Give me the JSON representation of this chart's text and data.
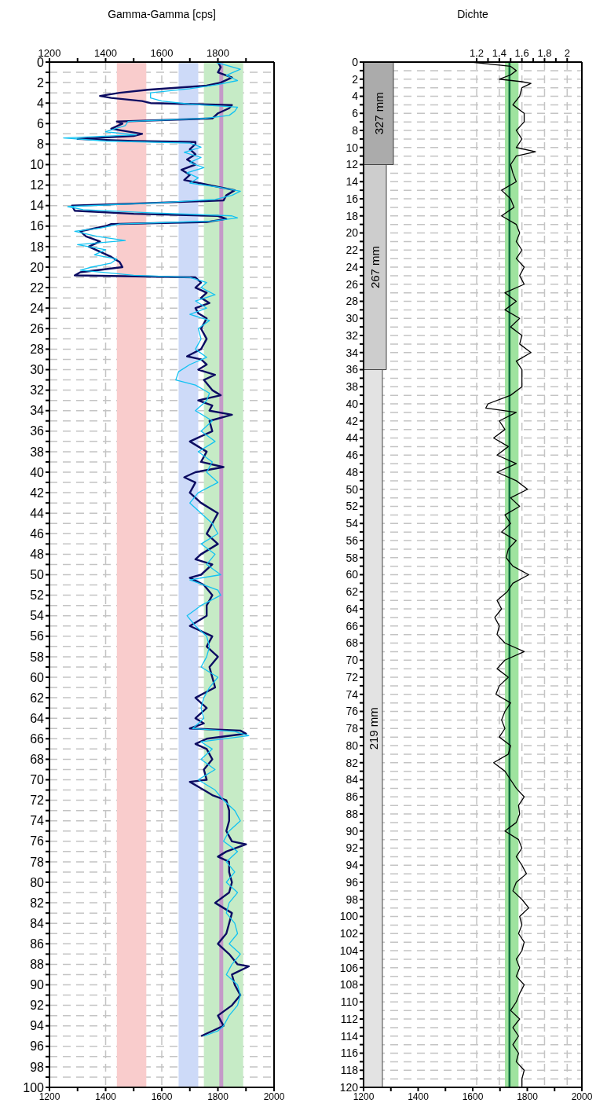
{
  "chart_data": [
    {
      "type": "line",
      "orientation": "horizontal",
      "title": "Gamma-Gamma [cps]",
      "grid": true,
      "xlim": [
        1200,
        2000
      ],
      "xticks": [
        1200,
        {
          "value": 1300,
          "label": null
        },
        1400,
        {
          "value": 1500,
          "label": null
        },
        1600,
        {
          "value": 1700,
          "label": null
        },
        1800,
        {
          "value": 1900,
          "label": null
        },
        2000
      ],
      "x2lim": [
        1200,
        2000
      ],
      "x2ticks": [
        1200,
        {
          "value": 1300,
          "label": null
        },
        1400,
        {
          "value": 1500,
          "label": null
        },
        1600,
        {
          "value": 1700,
          "label": null
        },
        1800,
        {
          "value": 1900,
          "label": null
        }
      ],
      "ylim": [
        100,
        0
      ],
      "yticks": [
        0,
        {
          "value": 1,
          "label": null
        },
        2,
        {
          "value": 3,
          "label": null
        },
        4,
        {
          "value": 5,
          "label": null
        },
        6,
        {
          "value": 7,
          "label": null
        },
        8,
        {
          "value": 9,
          "label": null
        },
        10,
        {
          "value": 11,
          "label": null
        },
        12,
        {
          "value": 13,
          "label": null
        },
        14,
        {
          "value": 15,
          "label": null
        },
        16,
        {
          "value": 17,
          "label": null
        },
        18,
        {
          "value": 19,
          "label": null
        },
        20,
        {
          "value": 21,
          "label": null
        },
        22,
        {
          "value": 23,
          "label": null
        },
        24,
        {
          "value": 25,
          "label": null
        },
        26,
        {
          "value": 27,
          "label": null
        },
        28,
        {
          "value": 29,
          "label": null
        },
        30,
        {
          "value": 31,
          "label": null
        },
        32,
        {
          "value": 33,
          "label": null
        },
        34,
        {
          "value": 35,
          "label": null
        },
        36,
        {
          "value": 37,
          "label": null
        },
        38,
        {
          "value": 39,
          "label": null
        },
        40,
        {
          "value": 41,
          "label": null
        },
        42,
        {
          "value": 43,
          "label": null
        },
        44,
        {
          "value": 45,
          "label": null
        },
        46,
        {
          "value": 47,
          "label": null
        },
        48,
        {
          "value": 49,
          "label": null
        },
        50,
        {
          "value": 51,
          "label": null
        },
        52,
        {
          "value": 53,
          "label": null
        },
        54,
        {
          "value": 55,
          "label": null
        },
        56,
        {
          "value": 57,
          "label": null
        },
        58,
        {
          "value": 59,
          "label": null
        },
        60,
        {
          "value": 61,
          "label": null
        },
        62,
        {
          "value": 63,
          "label": null
        },
        64,
        {
          "value": 65,
          "label": null
        },
        66,
        {
          "value": 67,
          "label": null
        },
        68,
        {
          "value": 69,
          "label": null
        },
        70,
        {
          "value": 71,
          "label": null
        },
        72,
        {
          "value": 73,
          "label": null
        },
        74,
        {
          "value": 75,
          "label": null
        },
        76,
        {
          "value": 77,
          "label": null
        },
        78,
        {
          "value": 79,
          "label": null
        },
        80,
        {
          "value": 81,
          "label": null
        },
        82,
        {
          "value": 83,
          "label": null
        },
        84,
        {
          "value": 85,
          "label": null
        },
        86,
        {
          "value": 87,
          "label": null
        },
        88,
        {
          "value": 89,
          "label": null
        },
        90,
        {
          "value": 91,
          "label": null
        },
        92,
        {
          "value": 93,
          "label": null
        },
        94,
        {
          "value": 95,
          "label": null
        },
        96,
        {
          "value": 97,
          "label": null
        },
        98,
        {
          "value": 99,
          "label": null
        },
        100
      ],
      "bands": [
        {
          "axis": "x",
          "from": 1440,
          "to": 1545,
          "color": "#f9cccc"
        },
        {
          "axis": "x",
          "from": 1660,
          "to": 1730,
          "color": "#cddaf8"
        },
        {
          "axis": "x",
          "from": 1750,
          "to": 1890,
          "color": "#c6ebc6"
        }
      ],
      "ref_lines": [
        {
          "axis": "x",
          "value": 1812,
          "color": "#c49ac8"
        }
      ],
      "series": [
        {
          "color": "#0c0c62",
          "x": [
            0,
            0.5,
            1,
            1.5,
            2,
            2.3,
            2.7,
            3,
            3.3,
            3.5,
            3.8,
            4,
            4.2,
            4.5,
            5,
            5.5,
            5.8,
            6,
            6.5,
            7,
            7.2,
            7.5,
            7.7,
            7.8,
            8,
            8.5,
            9,
            9.5,
            10,
            10.5,
            11,
            11.5,
            12,
            12.5,
            13,
            13.5,
            13.8,
            14,
            14.5,
            14.8,
            15,
            15.3,
            15.6,
            15.8,
            16,
            16.5,
            17,
            17.5,
            18,
            18.5,
            19,
            19.5,
            20,
            20.5,
            20.8,
            21,
            21.5,
            22,
            22.5,
            23,
            23.5,
            24,
            24.5,
            25,
            25.5,
            26,
            27,
            28,
            28.7,
            29,
            29.5,
            30,
            30.5,
            31,
            32,
            32.5,
            33,
            33.5,
            34,
            34.4,
            35,
            36,
            37,
            38,
            39,
            39.5,
            40,
            40.5,
            41,
            42,
            43,
            44,
            44.5,
            45,
            46,
            47,
            48,
            48.5,
            49,
            50,
            50.3,
            51,
            52,
            53,
            54,
            55,
            56,
            57,
            58,
            59,
            60,
            61,
            62,
            63,
            64,
            64.5,
            65,
            65.2,
            65.5,
            66,
            66.5,
            67,
            68,
            69,
            70,
            70.2,
            71,
            71.5,
            72,
            73,
            74,
            75,
            76,
            76.3,
            77,
            77.5,
            78,
            79,
            80,
            81,
            82,
            83,
            84,
            85,
            86,
            87,
            88,
            88.2,
            89,
            90,
            91,
            92,
            93,
            94,
            94.5,
            95
          ],
          "values": [
            1800,
            1810,
            1800,
            1850,
            1810,
            1760,
            1550,
            1450,
            1380,
            1420,
            1530,
            1560,
            1850,
            1840,
            1800,
            1780,
            1440,
            1460,
            1420,
            1530,
            1500,
            1300,
            1500,
            1720,
            1720,
            1700,
            1720,
            1690,
            1720,
            1670,
            1700,
            1680,
            1770,
            1860,
            1830,
            1820,
            1500,
            1280,
            1290,
            1500,
            1800,
            1830,
            1760,
            1420,
            1400,
            1310,
            1330,
            1380,
            1340,
            1380,
            1420,
            1450,
            1460,
            1310,
            1290,
            1720,
            1740,
            1720,
            1760,
            1740,
            1770,
            1720,
            1730,
            1760,
            1750,
            1740,
            1760,
            1740,
            1690,
            1740,
            1760,
            1730,
            1790,
            1750,
            1780,
            1810,
            1730,
            1780,
            1770,
            1850,
            1770,
            1780,
            1700,
            1760,
            1740,
            1820,
            1720,
            1680,
            1720,
            1700,
            1740,
            1800,
            1790,
            1780,
            1760,
            1800,
            1740,
            1720,
            1780,
            1740,
            1700,
            1750,
            1780,
            1760,
            1760,
            1700,
            1780,
            1760,
            1800,
            1770,
            1780,
            1790,
            1720,
            1760,
            1720,
            1750,
            1700,
            1880,
            1900,
            1760,
            1720,
            1760,
            1780,
            1750,
            1760,
            1700,
            1750,
            1780,
            1830,
            1840,
            1840,
            1830,
            1850,
            1900,
            1830,
            1800,
            1840,
            1840,
            1850,
            1840,
            1790,
            1850,
            1840,
            1830,
            1800,
            1840,
            1870,
            1910,
            1850,
            1860,
            1880,
            1850,
            1800,
            1820,
            1780,
            1740
          ]
        },
        {
          "color": "#12c2f2",
          "x": [
            0,
            0.7,
            1.3,
            1.8,
            2.2,
            2.6,
            3,
            3.5,
            3.8,
            4.1,
            4.4,
            4.8,
            5.2,
            5.5,
            5.8,
            6.2,
            6.8,
            7.1,
            7.4,
            7.7,
            7.9,
            8.3,
            8.8,
            9.3,
            9.8,
            10.3,
            10.8,
            11.3,
            11.8,
            12.2,
            12.6,
            13,
            13.4,
            13.7,
            14.1,
            14.4,
            14.7,
            15,
            15.2,
            15.5,
            15.8,
            16.2,
            16.5,
            17,
            17.4,
            17.8,
            18.3,
            18.8,
            19.2,
            19.6,
            20,
            20.3,
            20.8,
            21,
            21.5,
            22,
            22.7,
            23.3,
            24,
            24.6,
            25.2,
            26,
            27,
            28,
            28.8,
            29.5,
            30.2,
            31,
            31.5,
            32.3,
            33,
            34,
            35,
            36,
            37,
            38,
            39,
            40,
            41,
            42,
            43,
            44,
            45,
            46,
            47,
            48,
            49,
            50,
            50.5,
            51.5,
            52,
            53,
            54,
            55,
            56,
            57,
            58,
            59,
            60,
            61,
            62,
            63,
            64,
            65,
            65.3,
            65.7,
            66.3,
            67,
            68,
            69,
            70,
            71,
            72,
            73,
            74,
            75,
            76,
            77,
            78,
            79,
            80,
            81,
            82,
            83,
            84,
            85,
            86,
            87,
            88,
            89,
            90,
            91,
            92,
            93,
            94,
            94.5,
            95
          ],
          "values": [
            1790,
            1880,
            1830,
            1870,
            1800,
            1700,
            1560,
            1560,
            1600,
            1700,
            1870,
            1860,
            1840,
            1750,
            1480,
            1470,
            1400,
            1510,
            1250,
            1400,
            1700,
            1740,
            1680,
            1740,
            1700,
            1750,
            1690,
            1730,
            1700,
            1800,
            1880,
            1850,
            1790,
            1600,
            1265,
            1320,
            1560,
            1850,
            1870,
            1780,
            1450,
            1380,
            1290,
            1370,
            1470,
            1300,
            1400,
            1360,
            1440,
            1420,
            1350,
            1310,
            1500,
            1700,
            1760,
            1740,
            1790,
            1720,
            1760,
            1700,
            1770,
            1730,
            1740,
            1720,
            1760,
            1700,
            1660,
            1650,
            1720,
            1770,
            1760,
            1720,
            1780,
            1740,
            1790,
            1730,
            1780,
            1760,
            1800,
            1730,
            1700,
            1740,
            1780,
            1800,
            1740,
            1790,
            1760,
            1810,
            1700,
            1800,
            1810,
            1740,
            1690,
            1720,
            1760,
            1770,
            1760,
            1740,
            1800,
            1770,
            1750,
            1740,
            1750,
            1710,
            1860,
            1910,
            1740,
            1780,
            1740,
            1790,
            1730,
            1790,
            1820,
            1860,
            1880,
            1840,
            1820,
            1870,
            1830,
            1860,
            1830,
            1870,
            1840,
            1830,
            1860,
            1870,
            1840,
            1880,
            1850,
            1830,
            1870,
            1880,
            1870,
            1840,
            1820,
            1800,
            1750
          ]
        }
      ]
    },
    {
      "type": "line",
      "orientation": "horizontal",
      "title": "Dichte",
      "grid": true,
      "xlim": [
        1200,
        2000
      ],
      "xticks": [
        1200,
        {
          "value": 1300,
          "label": null
        },
        1400,
        {
          "value": 1500,
          "label": null
        },
        1600,
        {
          "value": 1700,
          "label": null
        },
        1800,
        {
          "value": 1900,
          "label": null
        },
        2000
      ],
      "x2lim": [
        0.2,
        2.13
      ],
      "x2ticks": [
        1.2,
        {
          "value": 1.3,
          "label": null
        },
        1.4,
        {
          "value": 1.5,
          "label": null
        },
        1.6,
        {
          "value": 1.7,
          "label": null
        },
        1.8,
        {
          "value": 1.9,
          "label": null
        },
        2
      ],
      "ylim": [
        120,
        0
      ],
      "yticks": [
        0,
        {
          "value": 1,
          "label": null
        },
        2,
        {
          "value": 3,
          "label": null
        },
        4,
        {
          "value": 5,
          "label": null
        },
        6,
        {
          "value": 7,
          "label": null
        },
        8,
        {
          "value": 9,
          "label": null
        },
        10,
        {
          "value": 11,
          "label": null
        },
        12,
        {
          "value": 13,
          "label": null
        },
        14,
        {
          "value": 15,
          "label": null
        },
        16,
        {
          "value": 17,
          "label": null
        },
        18,
        {
          "value": 19,
          "label": null
        },
        20,
        {
          "value": 21,
          "label": null
        },
        22,
        {
          "value": 23,
          "label": null
        },
        24,
        {
          "value": 25,
          "label": null
        },
        26,
        {
          "value": 27,
          "label": null
        },
        28,
        {
          "value": 29,
          "label": null
        },
        30,
        {
          "value": 31,
          "label": null
        },
        32,
        {
          "value": 33,
          "label": null
        },
        34,
        {
          "value": 35,
          "label": null
        },
        36,
        {
          "value": 37,
          "label": null
        },
        38,
        {
          "value": 39,
          "label": null
        },
        40,
        {
          "value": 41,
          "label": null
        },
        42,
        {
          "value": 43,
          "label": null
        },
        44,
        {
          "value": 45,
          "label": null
        },
        46,
        {
          "value": 47,
          "label": null
        },
        48,
        {
          "value": 49,
          "label": null
        },
        50,
        {
          "value": 51,
          "label": null
        },
        52,
        {
          "value": 53,
          "label": null
        },
        54,
        {
          "value": 55,
          "label": null
        },
        56,
        {
          "value": 57,
          "label": null
        },
        58,
        {
          "value": 59,
          "label": null
        },
        60,
        {
          "value": 61,
          "label": null
        },
        62,
        {
          "value": 63,
          "label": null
        },
        64,
        {
          "value": 65,
          "label": null
        },
        66,
        {
          "value": 67,
          "label": null
        },
        68,
        {
          "value": 69,
          "label": null
        },
        70,
        {
          "value": 71,
          "label": null
        },
        72,
        {
          "value": 73,
          "label": null
        },
        74,
        {
          "value": 75,
          "label": null
        },
        76,
        {
          "value": 77,
          "label": null
        },
        78,
        {
          "value": 79,
          "label": null
        },
        80,
        {
          "value": 81,
          "label": null
        },
        82,
        {
          "value": 83,
          "label": null
        },
        84,
        {
          "value": 85,
          "label": null
        },
        86,
        {
          "value": 87,
          "label": null
        },
        88,
        {
          "value": 89,
          "label": null
        },
        90,
        {
          "value": 91,
          "label": null
        },
        92,
        {
          "value": 93,
          "label": null
        },
        94,
        {
          "value": 95,
          "label": null
        },
        96,
        {
          "value": 97,
          "label": null
        },
        98,
        {
          "value": 99,
          "label": null
        },
        100,
        {
          "value": 101,
          "label": null
        },
        102,
        {
          "value": 103,
          "label": null
        },
        104,
        {
          "value": 105,
          "label": null
        },
        106,
        {
          "value": 107,
          "label": null
        },
        108,
        {
          "value": 109,
          "label": null
        },
        110,
        {
          "value": 111,
          "label": null
        },
        112,
        {
          "value": 113,
          "label": null
        },
        114,
        {
          "value": 115,
          "label": null
        },
        116,
        {
          "value": 117,
          "label": null
        },
        118,
        {
          "value": 119,
          "label": null
        },
        120
      ],
      "bands": [
        {
          "axis": "y",
          "from": 0,
          "to": 12,
          "label": "327 mm",
          "color": "#ababab"
        },
        {
          "axis": "y",
          "from": 0,
          "to": 36,
          "label": "267 mm",
          "color": "#cdcdcd"
        },
        {
          "axis": "y",
          "from": 0,
          "to": 120,
          "label": "219 mm",
          "color": "#e3e3e3"
        },
        {
          "axis": "x2",
          "from": 1.45,
          "to": 1.57,
          "color": "#9fe39f"
        }
      ],
      "ref_lines": [
        {
          "axis": "x2",
          "value": 1.49,
          "color": "#0e6e3e"
        }
      ],
      "series": [
        {
          "color": "#000000",
          "axis": "x2",
          "x": [
            0,
            0.5,
            1,
            1.5,
            2,
            2.3,
            2.5,
            3,
            4,
            5,
            6,
            7,
            8,
            9,
            10,
            10.5,
            11,
            12,
            13,
            14,
            15,
            16,
            17,
            18,
            19,
            20,
            21,
            22,
            23,
            24,
            25,
            26,
            27,
            28,
            29,
            30,
            31,
            32,
            33,
            34,
            35,
            36,
            37,
            38,
            39,
            40,
            40.5,
            41,
            42,
            43,
            44,
            45,
            46,
            47,
            48,
            49,
            50,
            51,
            52,
            53,
            54,
            55,
            56,
            57,
            58,
            59,
            60,
            61,
            62,
            63,
            64,
            65,
            66,
            67,
            68,
            69,
            70,
            71,
            72,
            73,
            74,
            75,
            76,
            77,
            78,
            79,
            80,
            81,
            82,
            83,
            84,
            85,
            86,
            87,
            88,
            89,
            90,
            91,
            92,
            93,
            94,
            95,
            96,
            97,
            98,
            99,
            100,
            101,
            102,
            103,
            104,
            105,
            106,
            107,
            108,
            109,
            110,
            111,
            112,
            113,
            114,
            115,
            116,
            117,
            118,
            119,
            120
          ],
          "values": [
            1.15,
            1.5,
            1.55,
            1.5,
            1.4,
            1.6,
            1.68,
            1.6,
            1.58,
            1.52,
            1.62,
            1.62,
            1.55,
            1.6,
            1.55,
            1.72,
            1.55,
            1.5,
            1.52,
            1.55,
            1.42,
            1.5,
            1.53,
            1.42,
            1.55,
            1.58,
            1.55,
            1.6,
            1.55,
            1.62,
            1.58,
            1.62,
            1.45,
            1.55,
            1.45,
            1.58,
            1.5,
            1.6,
            1.58,
            1.68,
            1.55,
            1.6,
            1.6,
            1.6,
            1.5,
            1.3,
            1.28,
            1.55,
            1.4,
            1.45,
            1.35,
            1.48,
            1.38,
            1.55,
            1.38,
            1.55,
            1.65,
            1.5,
            1.58,
            1.45,
            1.5,
            1.42,
            1.55,
            1.48,
            1.46,
            1.52,
            1.66,
            1.52,
            1.47,
            1.38,
            1.42,
            1.36,
            1.4,
            1.38,
            1.45,
            1.62,
            1.45,
            1.38,
            1.48,
            1.4,
            1.37,
            1.5,
            1.45,
            1.42,
            1.45,
            1.4,
            1.5,
            1.48,
            1.35,
            1.45,
            1.5,
            1.55,
            1.62,
            1.57,
            1.58,
            1.55,
            1.45,
            1.57,
            1.6,
            1.55,
            1.6,
            1.64,
            1.55,
            1.52,
            1.6,
            1.66,
            1.58,
            1.6,
            1.57,
            1.62,
            1.6,
            1.55,
            1.58,
            1.55,
            1.62,
            1.58,
            1.55,
            1.5,
            1.58,
            1.52,
            1.57,
            1.52,
            1.57,
            1.55,
            1.62,
            1.6,
            1.6
          ]
        }
      ]
    }
  ]
}
